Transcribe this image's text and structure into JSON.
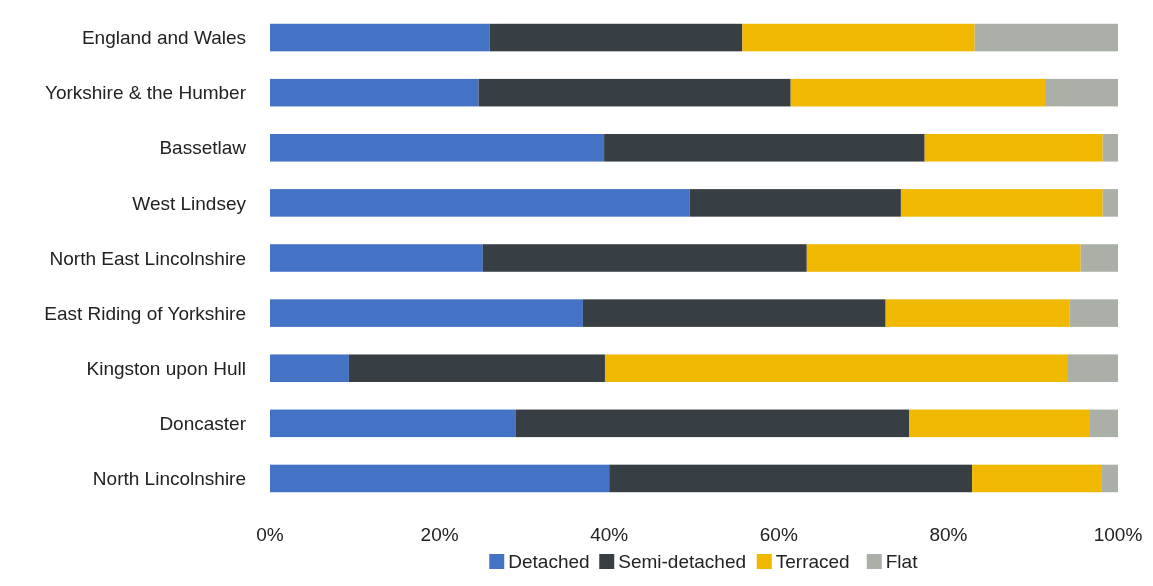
{
  "chart_data": {
    "type": "bar",
    "orientation": "horizontal",
    "stacked": true,
    "categories": [
      "England and Wales",
      "Yorkshire & the Humber",
      "Bassetlaw",
      "West Lindsey",
      "North East Lincolnshire",
      "East Riding of Yorkshire",
      "Kingston upon Hull",
      "Doncaster",
      "North Lincolnshire"
    ],
    "series": [
      {
        "name": "Detached",
        "color": "#4472c4",
        "values": [
          25.9,
          24.6,
          39.4,
          49.5,
          25.1,
          36.9,
          9.3,
          29.0,
          40.0
        ]
      },
      {
        "name": "Semi-detached",
        "color": "#383f44",
        "values": [
          29.8,
          36.8,
          37.8,
          24.9,
          38.2,
          35.7,
          30.2,
          46.4,
          42.8
        ]
      },
      {
        "name": "Terraced",
        "color": "#f0b800",
        "values": [
          27.4,
          30.0,
          21.0,
          23.8,
          32.3,
          21.7,
          54.6,
          21.3,
          15.3
        ]
      },
      {
        "name": "Flat",
        "color": "#aab0a8",
        "values": [
          16.9,
          8.6,
          1.8,
          1.8,
          4.4,
          5.7,
          5.9,
          3.3,
          1.9
        ]
      }
    ],
    "xlim": [
      0,
      100
    ],
    "xticks": [
      {
        "value": 0,
        "label": "0%"
      },
      {
        "value": 20,
        "label": "20%"
      },
      {
        "value": 40,
        "label": "40%"
      },
      {
        "value": 60,
        "label": "60%"
      },
      {
        "value": 80,
        "label": "80%"
      },
      {
        "value": 100,
        "label": "100%"
      }
    ],
    "grid": false,
    "legend": "bottom"
  }
}
